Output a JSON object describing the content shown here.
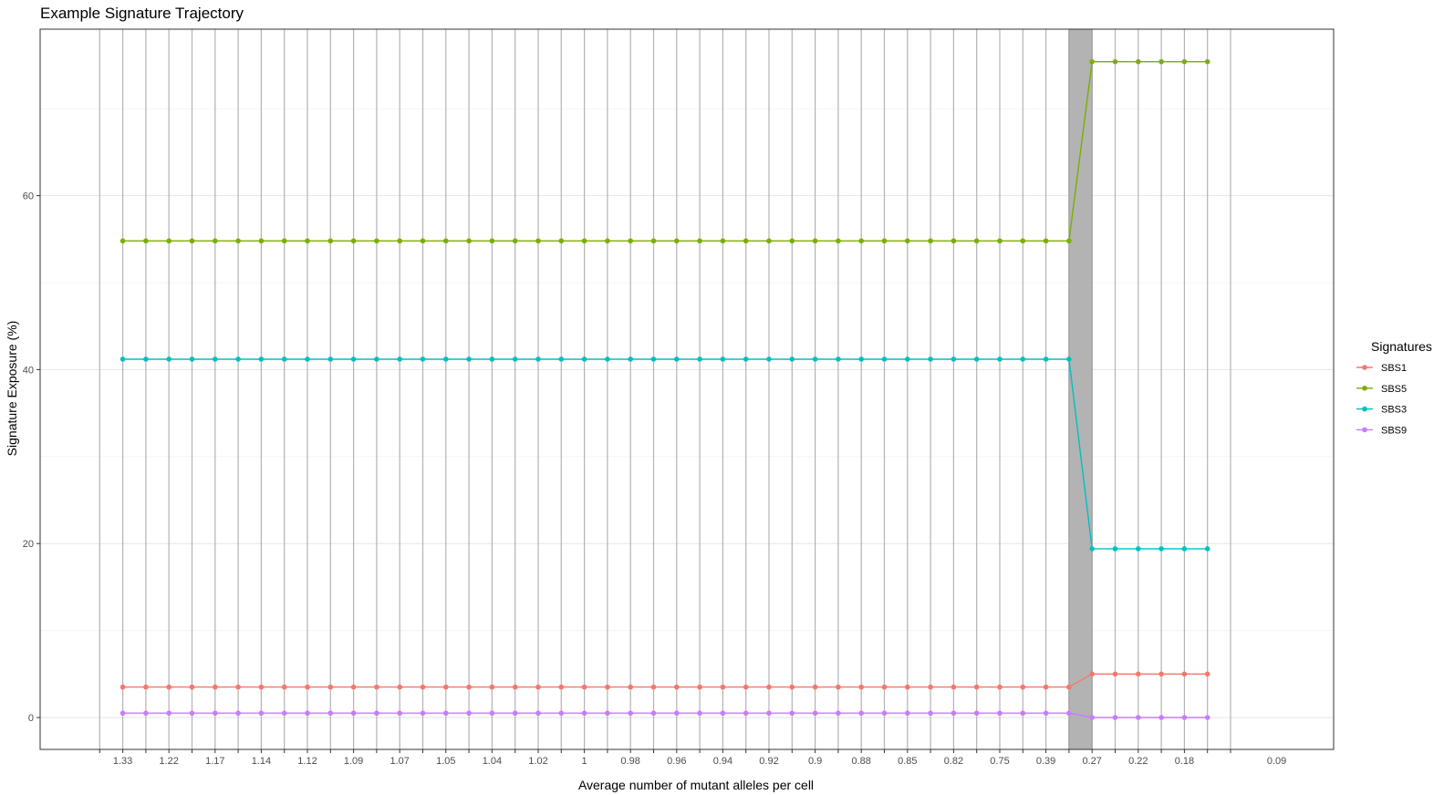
{
  "chart_data": {
    "type": "line",
    "title": "Example Signature Trajectory",
    "xlabel": "Average number of mutant alleles per cell",
    "ylabel": "Signature Exposure (%)",
    "ylim": [
      -3.5,
      76.5
    ],
    "yticks": [
      0,
      20,
      40,
      60
    ],
    "grid": true,
    "legend": {
      "title": "Signatures",
      "position": "right"
    },
    "n_x": 50,
    "x_first": 2,
    "tick_every": 2,
    "shaded_region": [
      43,
      44
    ],
    "x_tick_labels": [
      "1.33",
      "1.22",
      "1.17",
      "1.14",
      "1.12",
      "1.09",
      "1.07",
      "1.05",
      "1.04",
      "1.02",
      "1",
      "0.98",
      "0.96",
      "0.94",
      "0.92",
      "0.9",
      "0.88",
      "0.85",
      "0.82",
      "0.75",
      "0.39",
      "0.27",
      "0.22",
      "0.18",
      "",
      "0.09"
    ],
    "series": [
      {
        "name": "SBS1",
        "color": "#F8766D",
        "pre": 3.5,
        "post": 5.0
      },
      {
        "name": "SBS5",
        "color": "#7CAE00",
        "pre": 54.8,
        "post": 75.4
      },
      {
        "name": "SBS3",
        "color": "#00BFC4",
        "pre": 41.2,
        "post": 19.4
      },
      {
        "name": "SBS9",
        "color": "#C77CFF",
        "pre": 0.5,
        "post": 0.0
      }
    ],
    "x_change": 43
  }
}
